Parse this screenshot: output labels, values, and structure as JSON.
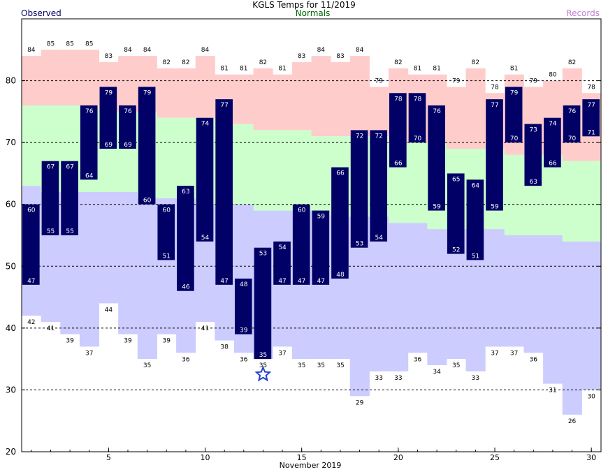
{
  "chart_data": {
    "type": "bar",
    "title": "KGLS Temps for 11/2019",
    "xlabel": "November 2019",
    "ylabel": "",
    "xlim": [
      0.5,
      30.5
    ],
    "ylim": [
      20,
      90
    ],
    "x_ticks": [
      5,
      10,
      15,
      20,
      25,
      30
    ],
    "y_ticks": [
      20,
      30,
      40,
      50,
      60,
      70,
      80
    ],
    "grid_y": [
      30,
      40,
      50,
      60,
      70,
      80
    ],
    "legend": [
      {
        "name": "Observed",
        "color": "#000066",
        "placement": "top-left"
      },
      {
        "name": "Normals",
        "color": "#006600",
        "placement": "top-center"
      },
      {
        "name": "Records",
        "color": "#c080d0",
        "placement": "top-right"
      }
    ],
    "days": [
      1,
      2,
      3,
      4,
      5,
      6,
      7,
      8,
      9,
      10,
      11,
      12,
      13,
      14,
      15,
      16,
      17,
      18,
      19,
      20,
      21,
      22,
      23,
      24,
      25,
      26,
      27,
      28,
      29,
      30
    ],
    "observed_high": [
      60,
      67,
      67,
      76,
      79,
      76,
      79,
      60,
      63,
      74,
      77,
      null,
      53,
      54,
      60,
      59,
      66,
      72,
      72,
      78,
      78,
      76,
      65,
      64,
      77,
      79,
      73,
      74,
      76,
      77
    ],
    "observed_low": [
      47,
      55,
      55,
      64,
      69,
      69,
      60,
      51,
      46,
      54,
      47,
      39,
      35,
      47,
      47,
      47,
      48,
      53,
      54,
      66,
      70,
      59,
      52,
      51,
      59,
      70,
      63,
      66,
      70,
      71
    ],
    "observed_high_low_day12": 48,
    "record_high": [
      84,
      85,
      85,
      85,
      83,
      84,
      84,
      82,
      82,
      84,
      81,
      81,
      82,
      81,
      83,
      84,
      83,
      84,
      79,
      82,
      81,
      81,
      79,
      82,
      78,
      81,
      79,
      80,
      82,
      78
    ],
    "record_low": [
      42,
      41,
      39,
      37,
      44,
      39,
      35,
      39,
      36,
      41,
      38,
      36,
      35,
      37,
      35,
      35,
      35,
      29,
      33,
      33,
      36,
      34,
      35,
      33,
      37,
      37,
      36,
      31,
      26,
      30
    ],
    "normal_high": [
      76,
      76,
      76,
      76,
      75,
      75,
      75,
      74,
      74,
      74,
      73,
      73,
      72,
      72,
      72,
      71,
      71,
      71,
      71,
      70,
      70,
      70,
      69,
      69,
      69,
      68,
      68,
      68,
      67,
      67
    ],
    "normal_low": [
      63,
      62,
      62,
      62,
      62,
      62,
      61,
      61,
      61,
      60,
      60,
      60,
      59,
      59,
      59,
      59,
      58,
      58,
      58,
      57,
      57,
      56,
      56,
      56,
      56,
      55,
      55,
      55,
      54,
      54
    ],
    "marker": {
      "day": 13,
      "value": 32.5,
      "shape": "star",
      "color": "#2244cc"
    },
    "colors": {
      "observed": "#000066",
      "normal": "#ccffcc",
      "record_high_band": "#ffcccc",
      "record_low_band": "#ccccff",
      "grid": "#000000"
    }
  }
}
